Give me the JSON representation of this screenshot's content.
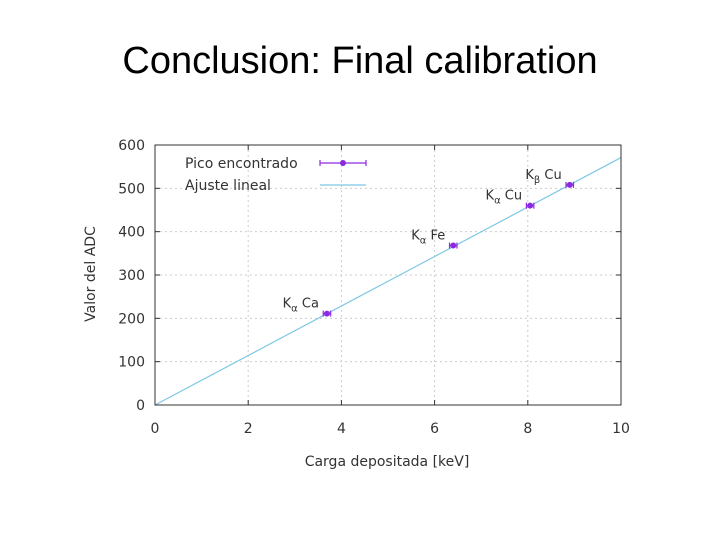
{
  "slide": {
    "title": "Conclusion: Final calibration"
  },
  "chart_data": {
    "type": "scatter",
    "xlabel": "Carga depositada [keV]",
    "ylabel": "Valor del ADC",
    "xlim": [
      0,
      10
    ],
    "ylim": [
      0,
      600
    ],
    "xticks": [
      0,
      2,
      4,
      6,
      8,
      10
    ],
    "yticks": [
      0,
      100,
      200,
      300,
      400,
      500,
      600
    ],
    "grid": true,
    "legend_position": "top-left",
    "colors": {
      "points": "#8a2be2",
      "fit": "#7ec8e3",
      "grid": "#cccccc",
      "axis": "#333333"
    },
    "series": [
      {
        "name": "Pico encontrado",
        "kind": "points-with-xerror",
        "points": [
          {
            "x": 3.69,
            "y": 211,
            "xerr": 0.08,
            "label_main": "K",
            "label_sub": "α",
            "label_elem": "Ca"
          },
          {
            "x": 6.4,
            "y": 368,
            "xerr": 0.08,
            "label_main": "K",
            "label_sub": "α",
            "label_elem": "Fe"
          },
          {
            "x": 8.05,
            "y": 460,
            "xerr": 0.08,
            "label_main": "K",
            "label_sub": "α",
            "label_elem": "Cu"
          },
          {
            "x": 8.9,
            "y": 508,
            "xerr": 0.08,
            "label_main": "K",
            "label_sub": "β",
            "label_elem": "Cu"
          }
        ]
      },
      {
        "name": "Ajuste lineal",
        "kind": "line",
        "x": [
          0,
          10
        ],
        "y": [
          0,
          571
        ]
      }
    ]
  }
}
